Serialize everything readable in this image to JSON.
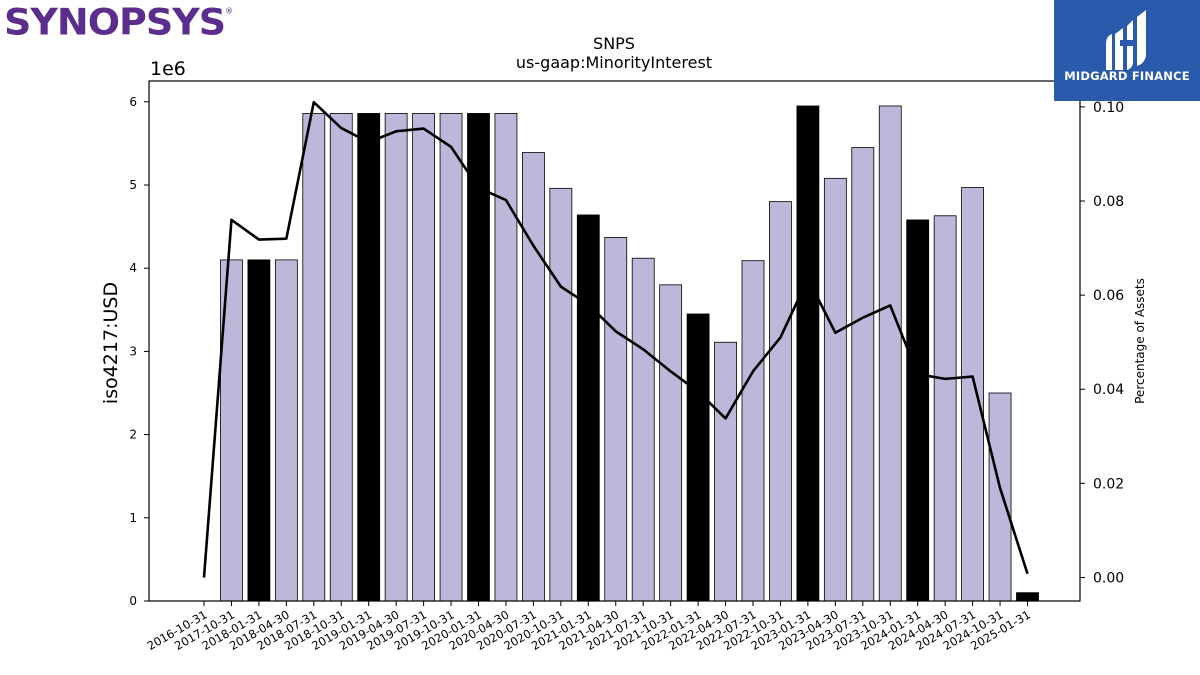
{
  "logos": {
    "synopsys_text": "SYNOPSYS",
    "synopsys_reg": "®",
    "midgard_text": "MIDGARD FINANCE"
  },
  "chart_data": {
    "type": "bar",
    "title": "SNPS",
    "subtitle": "us-gaap:MinorityInterest",
    "ylabel": "iso4217:USD",
    "y_offset_label": "1e6",
    "y2label": "Percentage of Assets",
    "ylim": [
      0,
      6250000
    ],
    "y2lim": [
      -0.005,
      0.1055
    ],
    "yticks": [
      0,
      1,
      2,
      3,
      4,
      5,
      6
    ],
    "y2ticks": [
      "0.00",
      "0.02",
      "0.04",
      "0.06",
      "0.08",
      "0.10"
    ],
    "categories": [
      "2016-10-31",
      "2017-10-31",
      "2018-01-31",
      "2018-04-30",
      "2018-07-31",
      "2018-10-31",
      "2019-01-31",
      "2019-04-30",
      "2019-07-31",
      "2019-10-31",
      "2020-01-31",
      "2020-04-30",
      "2020-07-31",
      "2020-10-31",
      "2021-01-31",
      "2021-04-30",
      "2021-07-31",
      "2021-10-31",
      "2022-01-31",
      "2022-04-30",
      "2022-07-31",
      "2022-10-31",
      "2023-01-31",
      "2023-04-30",
      "2023-07-31",
      "2023-10-31",
      "2024-01-31",
      "2024-04-30",
      "2024-07-31",
      "2024-10-31",
      "2025-01-31"
    ],
    "series": [
      {
        "type": "bar",
        "values": [
          0,
          4100000,
          4100000,
          4100000,
          5860000,
          5860000,
          5860000,
          5860000,
          5860000,
          5860000,
          5860000,
          5860000,
          5390000,
          4960000,
          4640000,
          4370000,
          4120000,
          3800000,
          3450000,
          3110000,
          4090000,
          4800000,
          5950000,
          5080000,
          5450000,
          5950000,
          4580000,
          4630000,
          4970000,
          2500000,
          100000
        ],
        "highlighted": [
          false,
          false,
          true,
          false,
          false,
          false,
          true,
          false,
          false,
          false,
          true,
          false,
          false,
          false,
          true,
          false,
          false,
          false,
          true,
          false,
          false,
          false,
          true,
          false,
          false,
          false,
          true,
          false,
          false,
          false,
          true
        ]
      },
      {
        "type": "line",
        "axis": "right",
        "values": [
          0.0,
          0.076,
          0.0718,
          0.072,
          0.101,
          0.0955,
          0.0925,
          0.0948,
          0.0954,
          0.0915,
          0.0828,
          0.0802,
          0.0705,
          0.0618,
          0.058,
          0.0523,
          0.0485,
          0.0438,
          0.0395,
          0.0338,
          0.0438,
          0.051,
          0.0635,
          0.052,
          0.0552,
          0.0578,
          0.0432,
          0.0422,
          0.0427,
          0.019,
          0.0008
        ]
      }
    ],
    "colors": {
      "bar": "#bcb8da",
      "bar_highlight": "#000000",
      "line": "#000000",
      "synopsys": "#5b2d8c",
      "midgard_bg": "#2a5aab"
    }
  }
}
